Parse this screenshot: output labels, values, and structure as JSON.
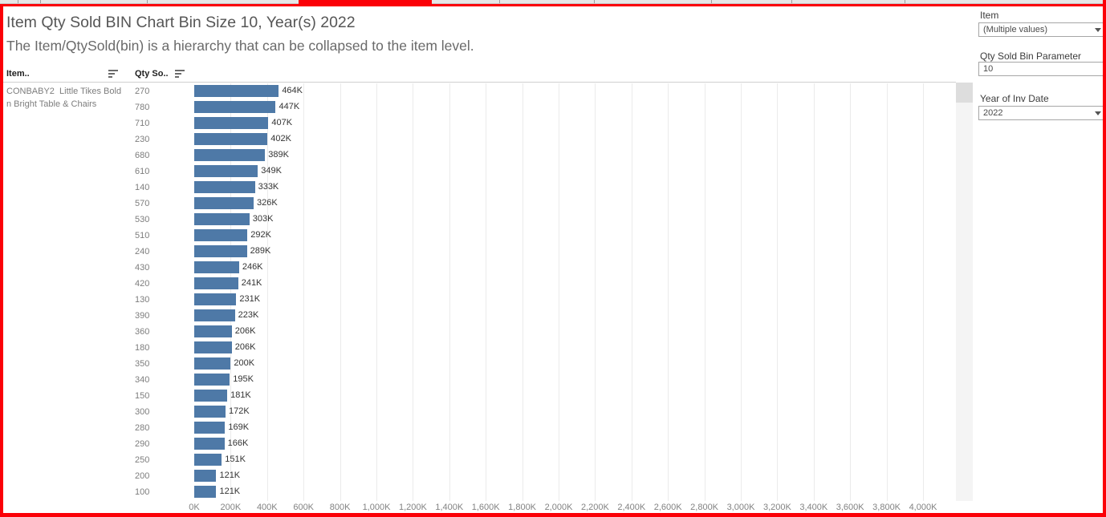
{
  "header": {
    "title": "Item Qty Sold BIN Chart Bin Size 10, Year(s) 2022",
    "subtitle": "The Item/QtySold(bin) is a hierarchy that can be collapsed to the item level."
  },
  "columns": {
    "item_header": "Item..",
    "qty_header": "Qty So.."
  },
  "item_label": "CONBABY2  Little Tikes Bold n Bright Table & Chairs",
  "chart_data": {
    "type": "bar",
    "orientation": "horizontal",
    "title": "Item Qty Sold BIN Chart Bin Size 10, Year(s) 2022",
    "categories": [
      "270",
      "780",
      "710",
      "230",
      "680",
      "610",
      "140",
      "570",
      "530",
      "510",
      "240",
      "430",
      "420",
      "130",
      "390",
      "360",
      "180",
      "350",
      "340",
      "150",
      "300",
      "280",
      "290",
      "250",
      "200",
      "100"
    ],
    "values_k": [
      464,
      447,
      407,
      402,
      389,
      349,
      333,
      326,
      303,
      292,
      289,
      246,
      241,
      231,
      223,
      206,
      206,
      200,
      195,
      181,
      172,
      169,
      166,
      151,
      121,
      121
    ],
    "value_labels": [
      "464K",
      "447K",
      "407K",
      "402K",
      "389K",
      "349K",
      "333K",
      "326K",
      "303K",
      "292K",
      "289K",
      "246K",
      "241K",
      "231K",
      "223K",
      "206K",
      "206K",
      "200K",
      "195K",
      "181K",
      "172K",
      "169K",
      "166K",
      "151K",
      "121K",
      "121K"
    ],
    "x_tick_values_k": [
      0,
      200,
      400,
      600,
      800,
      1000,
      1200,
      1400,
      1600,
      1800,
      2000,
      2200,
      2400,
      2600,
      2800,
      3000,
      3200,
      3400,
      3600,
      3800,
      4000
    ],
    "x_tick_labels": [
      "0K",
      "200K",
      "400K",
      "600K",
      "800K",
      "1,000K",
      "1,200K",
      "1,400K",
      "1,600K",
      "1,800K",
      "2,000K",
      "2,200K",
      "2,400K",
      "2,600K",
      "2,800K",
      "3,000K",
      "3,200K",
      "3,400K",
      "3,600K",
      "3,800K",
      "4,000K"
    ],
    "xlim_k": [
      0,
      4000
    ],
    "grid": true,
    "bar_color": "#4e79a7",
    "label_color": "#333333",
    "axis_text_color": "#828282"
  },
  "right_panel": {
    "item_filter": {
      "label": "Item",
      "value": "(Multiple values)"
    },
    "bin_parameter": {
      "label": "Qty Sold Bin Parameter",
      "value": "10"
    },
    "year_filter": {
      "label": "Year of Inv Date",
      "value": "2022"
    }
  },
  "colors": {
    "frame": "#fb0007",
    "bar": "#4e79a7",
    "gridline": "#ebebeb"
  }
}
